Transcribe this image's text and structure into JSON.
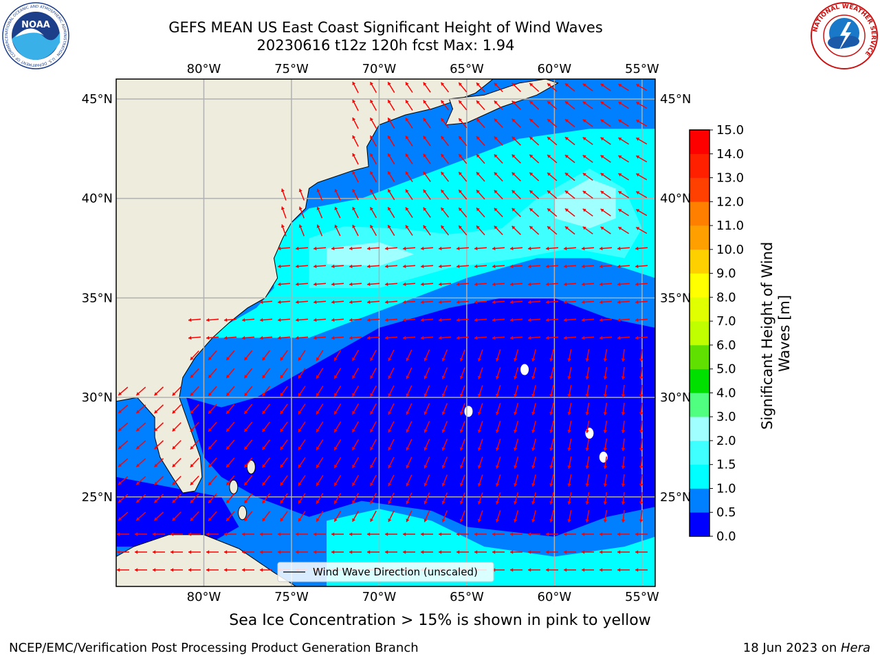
{
  "title": {
    "line1": "GEFS MEAN US East Coast Significant Height of Wind Waves",
    "line2": "20230616 t12z 120h fcst   Max: 1.94"
  },
  "map": {
    "lon_range": [
      -85,
      -54.25
    ],
    "lat_range": [
      20.5,
      46
    ],
    "lon_ticks": [
      "80°W",
      "75°W",
      "70°W",
      "65°W",
      "60°W",
      "55°W"
    ],
    "lat_ticks": [
      "45°N",
      "40°N",
      "35°N",
      "30°N",
      "25°N"
    ],
    "legend_label": "Wind Wave Direction (unscaled)",
    "arrow_color": "#ff0000",
    "land_color": "#eeecdc"
  },
  "colorbar": {
    "label": "Significant Height of Wind Waves [m]",
    "label_line1": "Significant Height of Wind",
    "label_line2": "Waves [m]",
    "ticks": [
      "0.0",
      "0.5",
      "1.0",
      "1.5",
      "2.0",
      "3.0",
      "4.0",
      "5.0",
      "6.0",
      "7.0",
      "8.0",
      "9.0",
      "10.0",
      "11.0",
      "12.0",
      "13.0",
      "14.0",
      "15.0"
    ],
    "colors": [
      "#0000ff",
      "#0080ff",
      "#00ffff",
      "#40ffff",
      "#a0ffff",
      "#50ff80",
      "#00e000",
      "#60e000",
      "#c0ff00",
      "#e0ff00",
      "#ffff00",
      "#ffd000",
      "#ffa000",
      "#ff8000",
      "#ff4000",
      "#ff2000",
      "#ff0000"
    ]
  },
  "ice_note": "Sea Ice Concentration > 15% is shown in pink to yellow",
  "footer": {
    "left": "NCEP/EMC/Verification Post Processing Product Generation Branch",
    "right_prefix": "18 Jun 2023 on ",
    "right_host": "Hera"
  },
  "logos": {
    "noaa_text": "NOAA",
    "noaa_ring": "NATIONAL OCEANIC AND ATMOSPHERIC ADMINISTRATION · U.S. DEPARTMENT OF COMMERCE",
    "nws_ring": "NATIONAL WEATHER SERVICE"
  }
}
